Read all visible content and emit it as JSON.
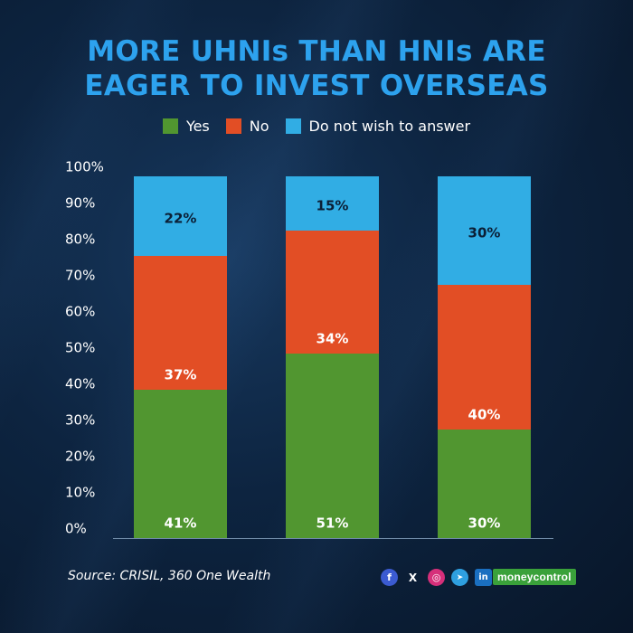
{
  "title_lines": [
    "MORE UHNIs THAN HNIs ARE",
    "EAGER TO INVEST OVERSEAS"
  ],
  "legend": [
    {
      "label": "Yes",
      "color": "#519630"
    },
    {
      "label": "No",
      "color": "#e24e25"
    },
    {
      "label": "Do not wish to answer",
      "color": "#31ade4"
    }
  ],
  "chart_data": {
    "type": "bar",
    "stacked": true,
    "title": "MORE UHNIs THAN HNIs ARE EAGER TO INVEST OVERSEAS",
    "categories": [
      "",
      "",
      ""
    ],
    "series": [
      {
        "name": "Yes",
        "color": "#519630",
        "values": [
          41,
          51,
          30
        ]
      },
      {
        "name": "No",
        "color": "#e24e25",
        "values": [
          37,
          34,
          40
        ]
      },
      {
        "name": "Do not wish to answer",
        "color": "#31ade4",
        "values": [
          22,
          15,
          30
        ]
      }
    ],
    "data_labels": [
      [
        "41%",
        "51%",
        "30%"
      ],
      [
        "37%",
        "34%",
        "40%"
      ],
      [
        "22%",
        "15%",
        "30%"
      ]
    ],
    "ylim": [
      0,
      100
    ],
    "yticks": [
      "0%",
      "10%",
      "20%",
      "30%",
      "40%",
      "50%",
      "60%",
      "70%",
      "80%",
      "90%",
      "100%"
    ],
    "xlabel": "",
    "ylabel": "",
    "grid": false,
    "legend_position": "top-center"
  },
  "footer": {
    "source": "Source: CRISIL, 360 One Wealth",
    "social_icons": [
      {
        "name": "facebook",
        "glyph": "f",
        "color": "#3b5bd1"
      },
      {
        "name": "x",
        "glyph": "𝕏",
        "color": "transparent"
      },
      {
        "name": "instagram",
        "glyph": "◎",
        "color": "#d62f7a"
      },
      {
        "name": "telegram",
        "glyph": "➤",
        "color": "#2e9fe0"
      },
      {
        "name": "linkedin",
        "glyph": "in",
        "color": "#1a6fc0"
      }
    ],
    "brand": "moneycontrol"
  }
}
